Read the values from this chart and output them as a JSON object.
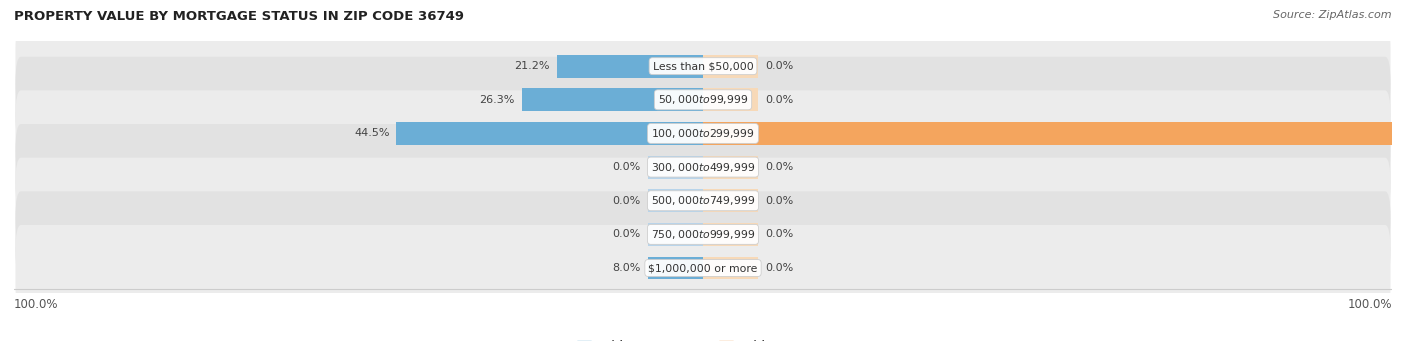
{
  "title": "Property Value by Mortgage Status in Zip Code 36749",
  "title_display": "PROPERTY VALUE BY MORTGAGE STATUS IN ZIP CODE 36749",
  "source": "Source: ZipAtlas.com",
  "categories": [
    "Less than $50,000",
    "$50,000 to $99,999",
    "$100,000 to $299,999",
    "$300,000 to $499,999",
    "$500,000 to $749,999",
    "$750,000 to $999,999",
    "$1,000,000 or more"
  ],
  "without_mortgage": [
    21.2,
    26.3,
    44.5,
    0.0,
    0.0,
    0.0,
    8.0
  ],
  "with_mortgage": [
    0.0,
    0.0,
    100.0,
    0.0,
    0.0,
    0.0,
    0.0
  ],
  "color_without": "#6baed6",
  "color_with": "#f4a55e",
  "color_without_zero": "#b8d4ea",
  "color_with_zero": "#f7d9b8",
  "row_bg_light": "#ececec",
  "row_bg_dark": "#e2e2e2",
  "xlim_left": -100,
  "xlim_right": 100,
  "zero_stub": 8
}
